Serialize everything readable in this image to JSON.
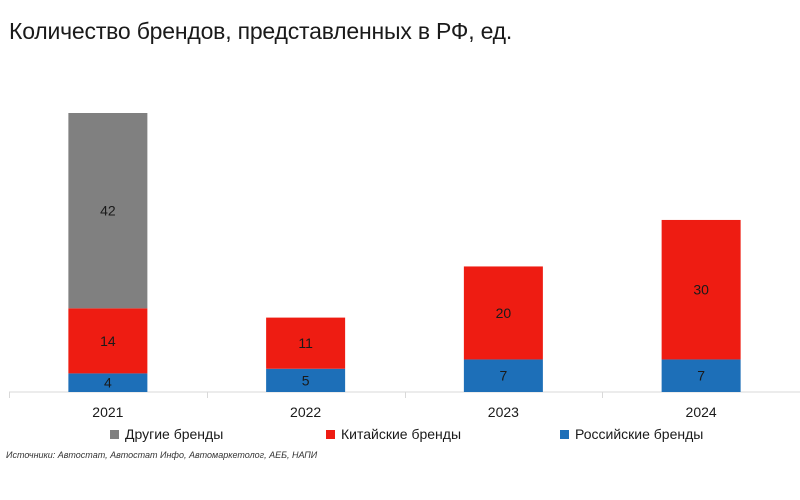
{
  "title": "Количество брендов, представленных в РФ, ед.",
  "colors": {
    "other": "#808080",
    "chinese": "#ee1c12",
    "russian": "#1d6fb8",
    "axis": "#d9d9d9"
  },
  "chart_data": {
    "type": "bar",
    "stacked": true,
    "categories": [
      "2021",
      "2022",
      "2023",
      "2024"
    ],
    "series": [
      {
        "name": "Российские бренды",
        "key": "russian",
        "values": [
          4,
          5,
          7,
          7
        ]
      },
      {
        "name": "Китайские бренды",
        "key": "chinese",
        "values": [
          14,
          11,
          20,
          30
        ]
      },
      {
        "name": "Другие бренды",
        "key": "other",
        "values": [
          42,
          0,
          0,
          0
        ]
      }
    ],
    "title": "Количество брендов, представленных в РФ, ед.",
    "xlabel": "",
    "ylabel": "",
    "grid": false
  },
  "legend": [
    {
      "label": "Другие бренды",
      "key": "other"
    },
    {
      "label": "Китайские бренды",
      "key": "chinese"
    },
    {
      "label": "Российские бренды",
      "key": "russian"
    }
  ],
  "source": "Источники: Автостат, Автостат Инфо, Автомаркетолог, АЕБ, НАПИ"
}
